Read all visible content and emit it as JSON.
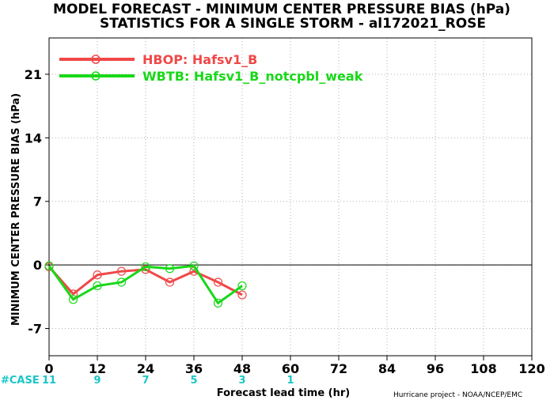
{
  "chart_data": {
    "type": "line",
    "title": "MODEL FORECAST - MINIMUM CENTER PRESSURE BIAS (hPa)",
    "subtitle": "STATISTICS FOR A SINGLE STORM - al172021_ROSE",
    "xlabel": "Forecast lead time (hr)",
    "ylabel": "MINIMUM CENTER PRESSURE BIAS (hPa)",
    "xlim": [
      0,
      120
    ],
    "ylim": [
      -10,
      25
    ],
    "xticks": [
      0,
      12,
      24,
      36,
      48,
      60,
      72,
      84,
      96,
      108,
      120
    ],
    "yticks": [
      -7,
      0,
      7,
      14,
      21
    ],
    "grid": true,
    "legend_position": "top-left",
    "series": [
      {
        "name": "HBOP: Hafsv1_B",
        "color": "#f04848",
        "x": [
          0,
          6,
          12,
          18,
          24,
          30,
          36,
          42,
          48
        ],
        "y": [
          -0.2,
          -3.2,
          -1.1,
          -0.7,
          -0.5,
          -1.9,
          -0.7,
          -1.9,
          -3.3
        ]
      },
      {
        "name": "WBTB: Hafsv1_B_notcpbl_weak",
        "color": "#18d818",
        "x": [
          0,
          6,
          12,
          18,
          24,
          30,
          36,
          42,
          48
        ],
        "y": [
          -0.1,
          -3.8,
          -2.3,
          -1.9,
          -0.2,
          -0.4,
          -0.1,
          -4.2,
          -2.3
        ]
      }
    ],
    "case_label": "#CASE",
    "cases": [
      {
        "x": 0,
        "label": "11"
      },
      {
        "x": 12,
        "label": "9"
      },
      {
        "x": 24,
        "label": "7"
      },
      {
        "x": 36,
        "label": "5"
      },
      {
        "x": 48,
        "label": "3"
      },
      {
        "x": 60,
        "label": "1"
      }
    ],
    "credit": "Hurricane project - NOAA/NCEP/EMC"
  }
}
